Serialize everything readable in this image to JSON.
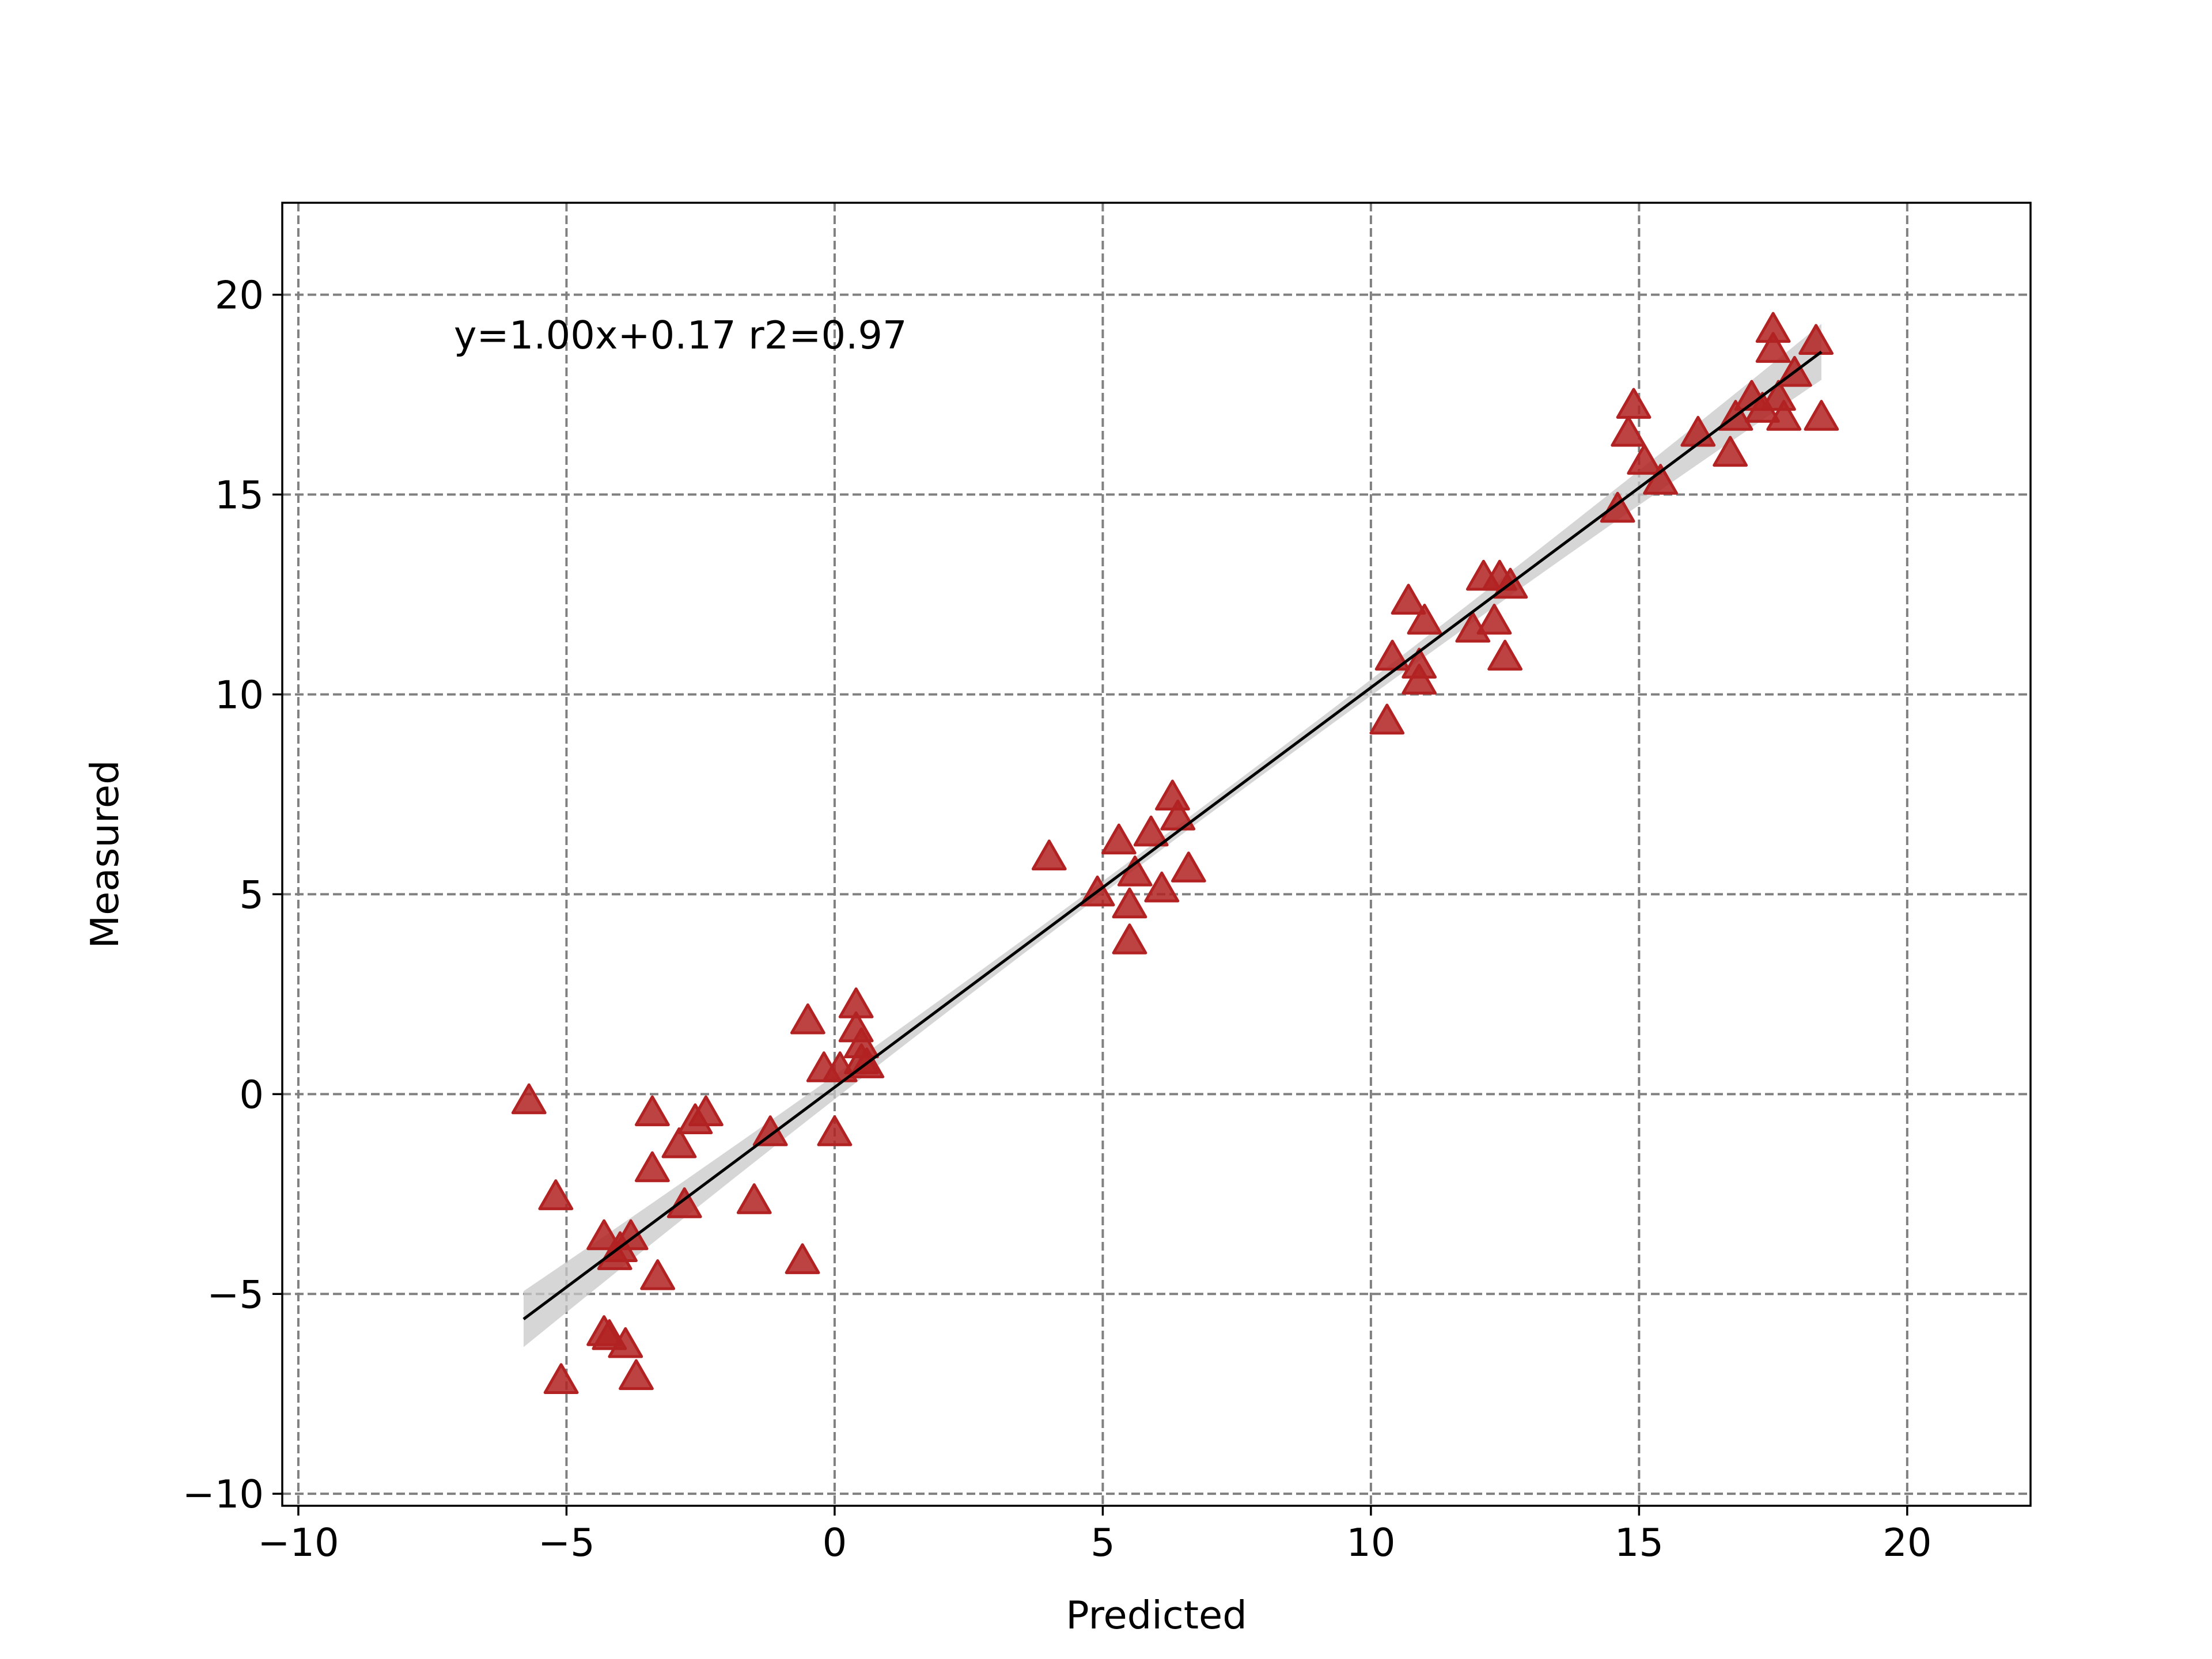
{
  "chart_data": {
    "type": "scatter",
    "xlabel": "Predicted",
    "ylabel": "Measured",
    "xlim": [
      -10.3,
      22.3
    ],
    "ylim": [
      -10.3,
      22.3
    ],
    "xticks": [
      -10,
      -5,
      0,
      5,
      10,
      15,
      20
    ],
    "yticks": [
      -10,
      -5,
      0,
      5,
      10,
      15,
      20
    ],
    "xtick_labels": [
      "−10",
      "−5",
      "0",
      "5",
      "10",
      "15",
      "20"
    ],
    "ytick_labels": [
      "−10",
      "−5",
      "0",
      "5",
      "10",
      "15",
      "20"
    ],
    "grid": true,
    "annotation": "y=1.00x+0.17 r2=0.97",
    "colors": {
      "marker": "#b22222",
      "fit_line": "#000000",
      "confidence_band": "#c8c8c8",
      "grid": "#808080"
    },
    "marker": "triangle",
    "fit": {
      "slope": 1.0,
      "intercept": 0.17,
      "x_range": [
        -5.8,
        18.4
      ],
      "ci_halfwidth_ends": 0.7,
      "ci_halfwidth_center": 0.15
    },
    "points": [
      [
        -5.7,
        -0.2
      ],
      [
        -5.2,
        -2.6
      ],
      [
        -5.1,
        -7.2
      ],
      [
        -4.3,
        -3.6
      ],
      [
        -4.3,
        -6.0
      ],
      [
        -4.2,
        -6.1
      ],
      [
        -4.1,
        -4.1
      ],
      [
        -4.0,
        -3.9
      ],
      [
        -3.9,
        -6.3
      ],
      [
        -3.8,
        -3.6
      ],
      [
        -3.7,
        -7.1
      ],
      [
        -3.4,
        -0.5
      ],
      [
        -3.4,
        -1.9
      ],
      [
        -3.3,
        -4.6
      ],
      [
        -2.9,
        -1.3
      ],
      [
        -2.8,
        -2.8
      ],
      [
        -2.6,
        -0.7
      ],
      [
        -2.4,
        -0.5
      ],
      [
        -1.5,
        -2.7
      ],
      [
        -1.2,
        -1.0
      ],
      [
        -0.6,
        -4.2
      ],
      [
        -0.5,
        1.8
      ],
      [
        -0.2,
        0.6
      ],
      [
        0.0,
        -1.0
      ],
      [
        0.1,
        0.6
      ],
      [
        0.4,
        2.2
      ],
      [
        0.4,
        1.6
      ],
      [
        0.5,
        1.2
      ],
      [
        0.5,
        0.8
      ],
      [
        0.6,
        0.7
      ],
      [
        4.0,
        5.9
      ],
      [
        4.9,
        5.0
      ],
      [
        5.3,
        6.3
      ],
      [
        5.5,
        4.7
      ],
      [
        5.5,
        3.8
      ],
      [
        5.6,
        5.5
      ],
      [
        5.9,
        6.5
      ],
      [
        6.1,
        5.1
      ],
      [
        6.3,
        7.4
      ],
      [
        6.4,
        6.9
      ],
      [
        6.6,
        5.6
      ],
      [
        10.3,
        9.3
      ],
      [
        10.4,
        10.9
      ],
      [
        10.7,
        12.3
      ],
      [
        10.9,
        10.3
      ],
      [
        10.9,
        10.7
      ],
      [
        11.0,
        11.8
      ],
      [
        11.9,
        11.6
      ],
      [
        12.1,
        12.9
      ],
      [
        12.3,
        11.8
      ],
      [
        12.4,
        12.9
      ],
      [
        12.5,
        10.9
      ],
      [
        12.6,
        12.7
      ],
      [
        14.6,
        14.6
      ],
      [
        14.8,
        16.5
      ],
      [
        14.9,
        17.2
      ],
      [
        15.1,
        15.8
      ],
      [
        15.4,
        15.3
      ],
      [
        16.1,
        16.5
      ],
      [
        16.7,
        16.0
      ],
      [
        16.8,
        16.9
      ],
      [
        17.1,
        17.4
      ],
      [
        17.3,
        17.1
      ],
      [
        17.5,
        19.1
      ],
      [
        17.5,
        18.6
      ],
      [
        17.6,
        17.4
      ],
      [
        17.7,
        16.9
      ],
      [
        17.9,
        18.0
      ],
      [
        18.3,
        18.8
      ],
      [
        18.4,
        16.9
      ]
    ]
  }
}
